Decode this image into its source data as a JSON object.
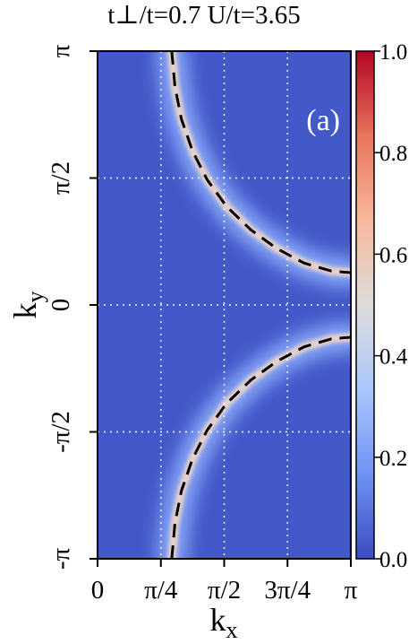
{
  "chart_data": {
    "type": "heatmap",
    "title": "t⊥/t=0.7  U/t=3.65",
    "panel_label": "(a)",
    "xlabel": "k",
    "xlabel_sub": "x",
    "ylabel": "k",
    "ylabel_sub": "y",
    "xlim": [
      0,
      3.14159
    ],
    "ylim": [
      -3.14159,
      3.14159
    ],
    "x_ticks": [
      {
        "value": 0,
        "label": "0"
      },
      {
        "value": 0.7854,
        "label": "π/4"
      },
      {
        "value": 1.5708,
        "label": "π/2"
      },
      {
        "value": 2.3562,
        "label": "3π/4"
      },
      {
        "value": 3.14159,
        "label": "π"
      }
    ],
    "y_ticks": [
      {
        "value": -3.14159,
        "label": "-π"
      },
      {
        "value": -1.5708,
        "label": "-π/2"
      },
      {
        "value": 0,
        "label": "0"
      },
      {
        "value": 1.5708,
        "label": "π/2"
      },
      {
        "value": 3.14159,
        "label": "π"
      }
    ],
    "grid": true,
    "colorbar": {
      "range": [
        0,
        1
      ],
      "ticks": [
        "0.0",
        "0.2",
        "0.4",
        "0.6",
        "0.8",
        "1.0"
      ],
      "colormap": "coolwarm",
      "colors": [
        "#3b4cc0",
        "#6f92f3",
        "#aac7fd",
        "#dddcdc",
        "#f7b89c",
        "#e7745b",
        "#b40426"
      ]
    },
    "fermi_surface": {
      "peak_intensity": 0.55,
      "background_intensity": 0.03,
      "dashed_color": "#000000",
      "upper_branch": [
        [
          0.92,
          3.14159
        ],
        [
          0.96,
          2.7
        ],
        [
          1.04,
          2.3
        ],
        [
          1.18,
          1.9
        ],
        [
          1.36,
          1.55
        ],
        [
          1.6,
          1.22
        ],
        [
          1.9,
          0.93
        ],
        [
          2.22,
          0.7
        ],
        [
          2.56,
          0.52
        ],
        [
          2.9,
          0.42
        ],
        [
          3.14159,
          0.4
        ]
      ],
      "lower_branch": [
        [
          0.92,
          -3.14159
        ],
        [
          0.96,
          -2.7
        ],
        [
          1.04,
          -2.3
        ],
        [
          1.18,
          -1.9
        ],
        [
          1.36,
          -1.55
        ],
        [
          1.6,
          -1.22
        ],
        [
          1.9,
          -0.93
        ],
        [
          2.22,
          -0.7
        ],
        [
          2.56,
          -0.52
        ],
        [
          2.9,
          -0.42
        ],
        [
          3.14159,
          -0.4
        ]
      ]
    }
  }
}
